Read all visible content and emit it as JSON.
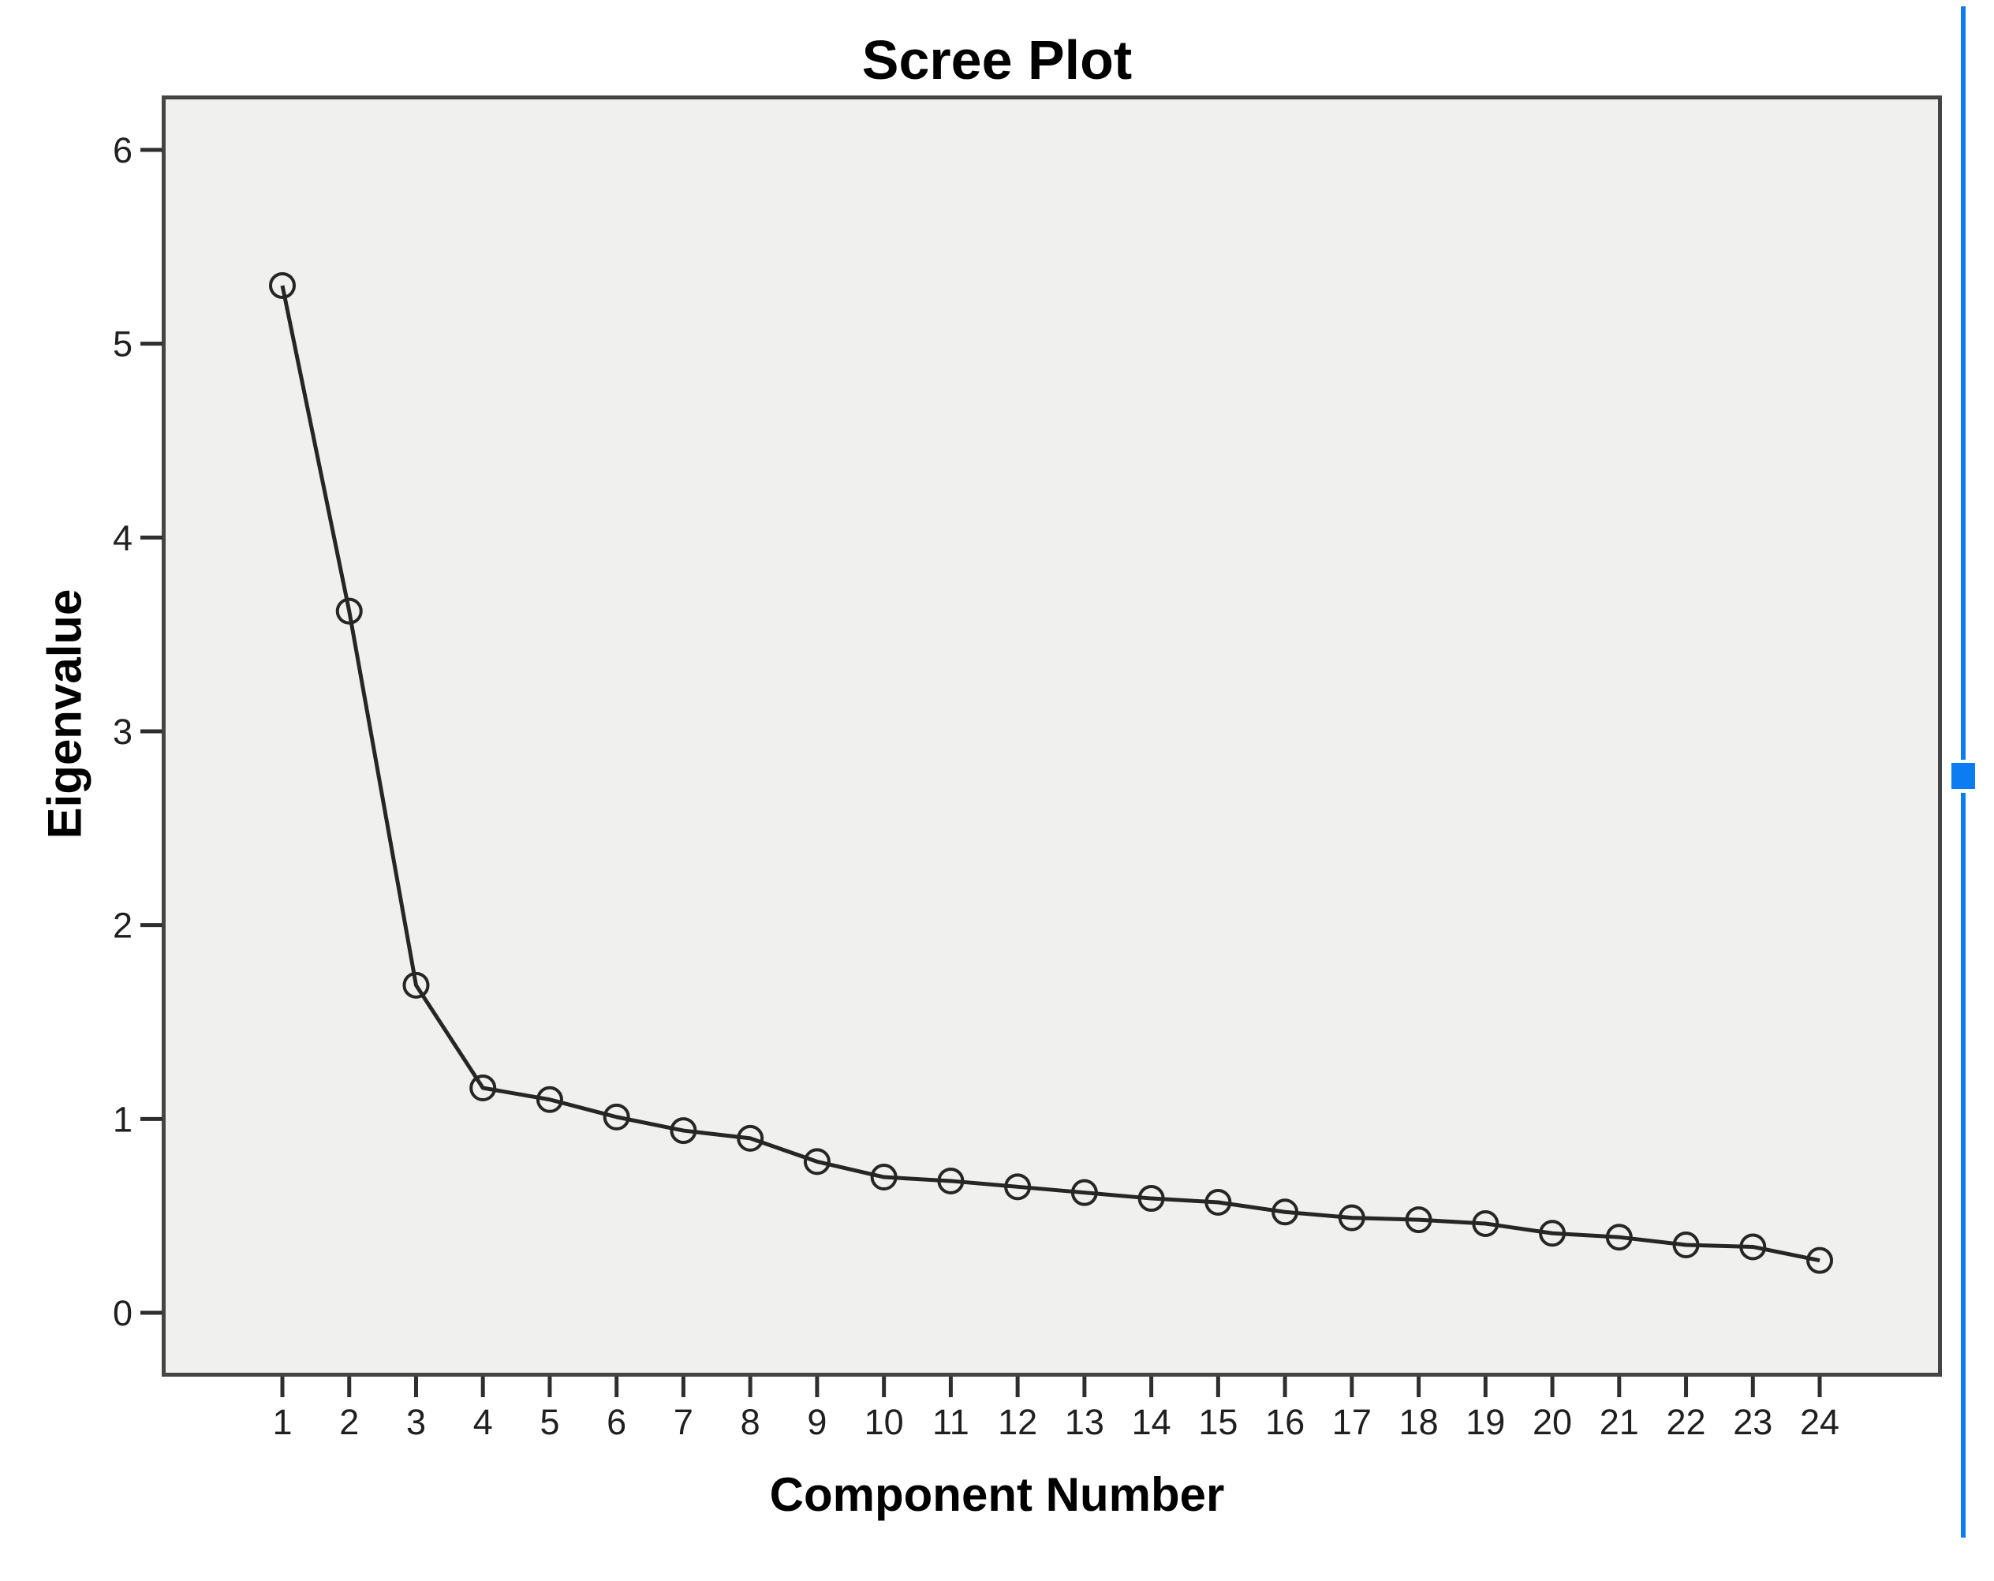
{
  "chart_data": {
    "type": "line",
    "title": "Scree Plot",
    "xlabel": "Component Number",
    "ylabel": "Eigenvalue",
    "categories": [
      1,
      2,
      3,
      4,
      5,
      6,
      7,
      8,
      9,
      10,
      11,
      12,
      13,
      14,
      15,
      16,
      17,
      18,
      19,
      20,
      21,
      22,
      23,
      24
    ],
    "values": [
      5.3,
      3.62,
      1.69,
      1.16,
      1.1,
      1.01,
      0.94,
      0.9,
      0.78,
      0.7,
      0.68,
      0.65,
      0.62,
      0.59,
      0.57,
      0.52,
      0.49,
      0.48,
      0.46,
      0.41,
      0.39,
      0.35,
      0.34,
      0.27
    ],
    "series": [
      {
        "name": "Eigenvalue",
        "values": [
          5.3,
          3.62,
          1.69,
          1.16,
          1.1,
          1.01,
          0.94,
          0.9,
          0.78,
          0.7,
          0.68,
          0.65,
          0.62,
          0.59,
          0.57,
          0.52,
          0.49,
          0.48,
          0.46,
          0.41,
          0.39,
          0.35,
          0.34,
          0.27
        ]
      }
    ],
    "ylim": [
      0,
      6
    ],
    "y_ticks": [
      0,
      1,
      2,
      3,
      4,
      5,
      6
    ],
    "grid": false,
    "legend_position": "none",
    "marker_style": "open-circle",
    "colors": {
      "line": "#262626",
      "marker": "#262626",
      "tick": "#2e2e2e",
      "tick_label": "#1f1f1f",
      "plot_bg": "#f0f0ee",
      "frame": "#454545",
      "text": "#000000"
    }
  },
  "scrollbar": {
    "color": "#0c7cf2",
    "handle_shape": "square"
  }
}
